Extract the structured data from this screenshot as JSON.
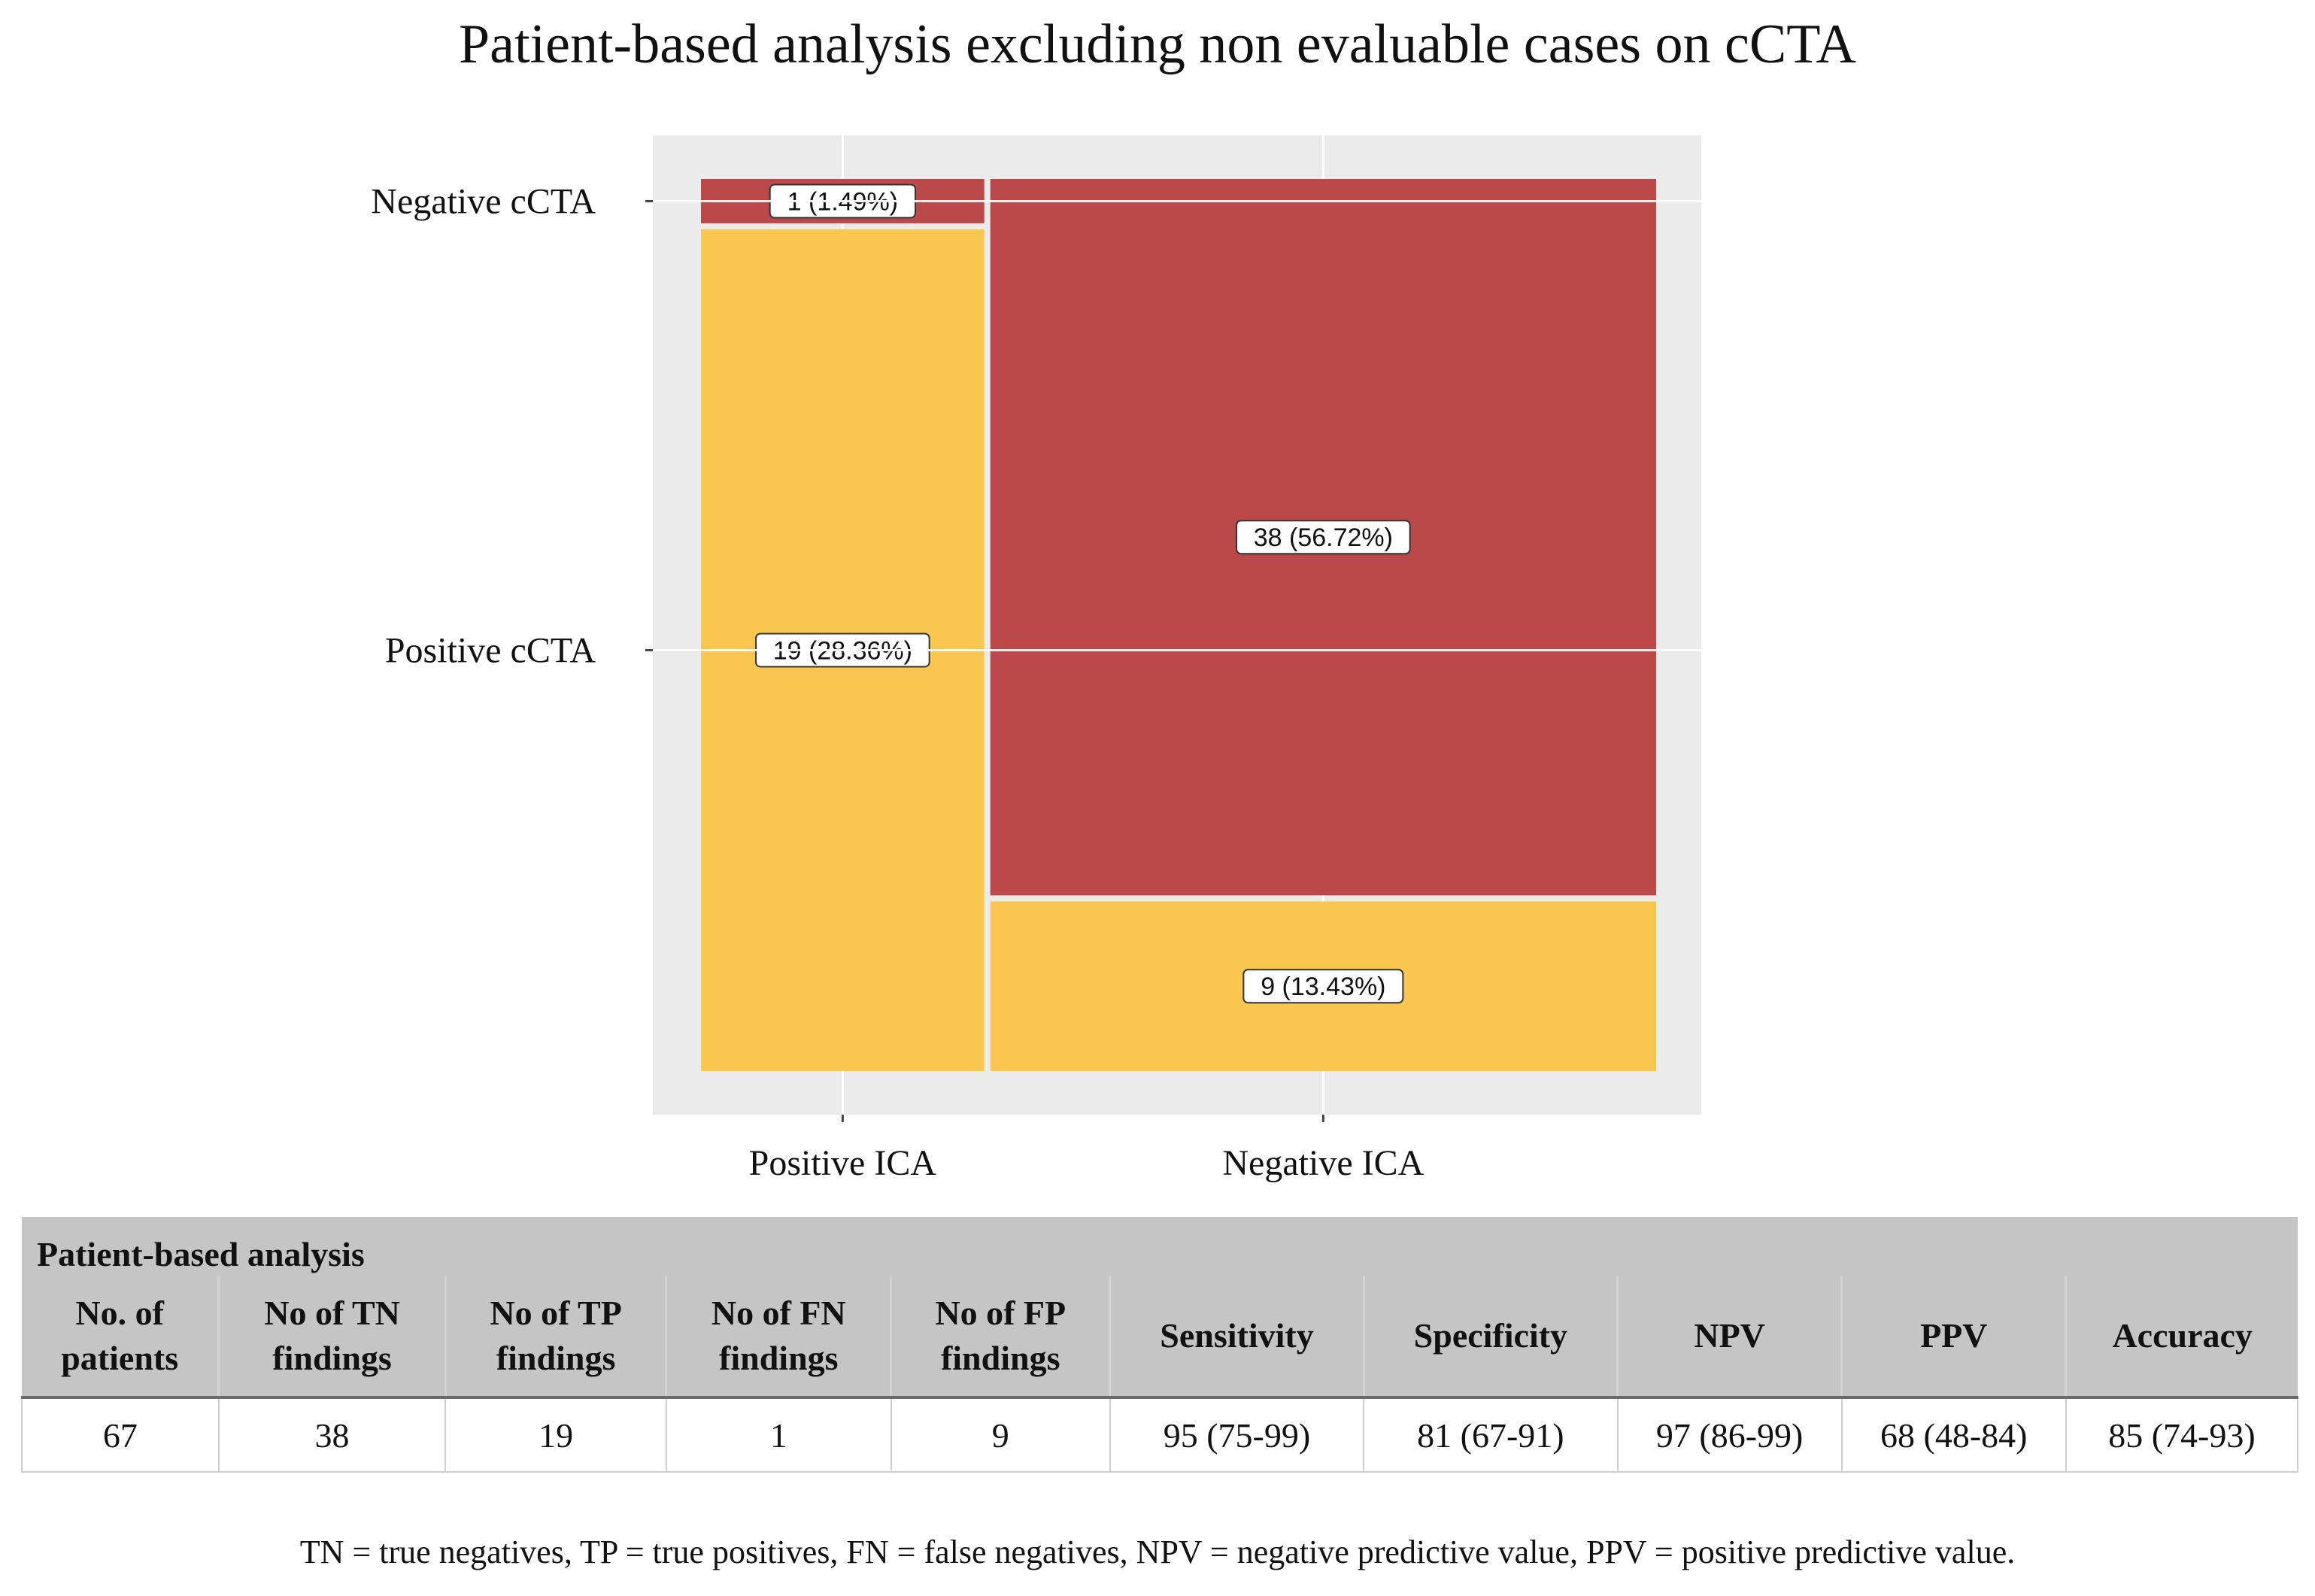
{
  "chart_data": {
    "type": "mosaic",
    "title": "Patient-based analysis excluding non evaluable cases on cCTA",
    "x_categories": [
      "Positive ICA",
      "Negative ICA"
    ],
    "y_categories": [
      "Negative cCTA",
      "Positive cCTA"
    ],
    "cells": [
      {
        "x": "Positive ICA",
        "y": "Negative cCTA",
        "count": 1,
        "label": "1 (1.49%)",
        "color": "#bc494a"
      },
      {
        "x": "Positive ICA",
        "y": "Positive cCTA",
        "count": 19,
        "label": "19 (28.36%)",
        "color": "#f9c74f"
      },
      {
        "x": "Negative ICA",
        "y": "Negative cCTA",
        "count": 38,
        "label": "38 (56.72%)",
        "color": "#bc494a"
      },
      {
        "x": "Negative ICA",
        "y": "Positive cCTA",
        "count": 9,
        "label": "9 (13.43%)",
        "color": "#f9c74f"
      }
    ],
    "panel_background": "#ebebeb",
    "gridline_color": "#ffffff"
  },
  "table": {
    "caption": "Patient-based analysis",
    "headers": [
      [
        "No. of",
        "patients"
      ],
      [
        "No of TN",
        "findings"
      ],
      [
        "No of TP",
        "findings"
      ],
      [
        "No of FN",
        "findings"
      ],
      [
        "No of FP",
        "findings"
      ],
      [
        "Sensitivity"
      ],
      [
        "Specificity"
      ],
      [
        "NPV"
      ],
      [
        "PPV"
      ],
      [
        "Accuracy"
      ]
    ],
    "row": [
      "67",
      "38",
      "19",
      "1",
      "9",
      "95 (75-99)",
      "81 (67-91)",
      "97 (86-99)",
      "68 (48-84)",
      "85 (74-93)"
    ]
  },
  "footnote": "TN = true negatives, TP = true positives, FN = false negatives, NPV = negative predictive value, PPV = positive predictive value."
}
